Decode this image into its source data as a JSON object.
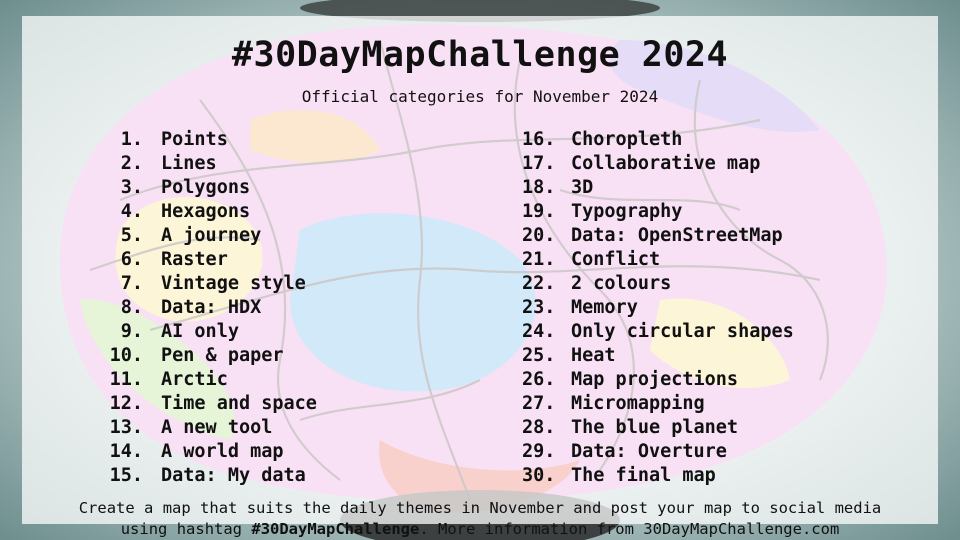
{
  "title": "#30DayMapChallenge 2024",
  "subtitle": "Official categories for November 2024",
  "days_left": [
    {
      "num": "1.",
      "label": "Points"
    },
    {
      "num": "2.",
      "label": "Lines"
    },
    {
      "num": "3.",
      "label": "Polygons"
    },
    {
      "num": "4.",
      "label": "Hexagons"
    },
    {
      "num": "5.",
      "label": "A journey"
    },
    {
      "num": "6.",
      "label": "Raster"
    },
    {
      "num": "7.",
      "label": "Vintage style"
    },
    {
      "num": "8.",
      "label": "Data: HDX"
    },
    {
      "num": "9.",
      "label": "AI only"
    },
    {
      "num": "10.",
      "label": "Pen & paper"
    },
    {
      "num": "11.",
      "label": "Arctic"
    },
    {
      "num": "12.",
      "label": "Time and space"
    },
    {
      "num": "13.",
      "label": "A new tool"
    },
    {
      "num": "14.",
      "label": "A world map"
    },
    {
      "num": "15.",
      "label": "Data: My data"
    }
  ],
  "days_right": [
    {
      "num": "16.",
      "label": "Choropleth"
    },
    {
      "num": "17.",
      "label": "Collaborative map"
    },
    {
      "num": "18.",
      "label": "3D"
    },
    {
      "num": "19.",
      "label": "Typography"
    },
    {
      "num": "20.",
      "label": "Data: OpenStreetMap"
    },
    {
      "num": "21.",
      "label": "Conflict"
    },
    {
      "num": "22.",
      "label": "2 colours"
    },
    {
      "num": "23.",
      "label": "Memory"
    },
    {
      "num": "24.",
      "label": "Only circular shapes"
    },
    {
      "num": "25.",
      "label": "Heat"
    },
    {
      "num": "26.",
      "label": "Map projections"
    },
    {
      "num": "27.",
      "label": "Micromapping"
    },
    {
      "num": "28.",
      "label": "The blue planet"
    },
    {
      "num": "29.",
      "label": "Data: Overture"
    },
    {
      "num": "30.",
      "label": "The final map"
    }
  ],
  "footer": {
    "line1": "Create a map that suits the daily themes in November and post your map to social media",
    "line2_prefix": "using hashtag ",
    "line2_hashtag": "#30DayMapChallenge",
    "line2_suffix": ". More information from 30DayMapChallenge.com"
  },
  "colors": {
    "background": "#a9bcbc",
    "panel": "#ffffff",
    "text": "#111111",
    "brain_pink": "#e98bd6",
    "brain_blue": "#4fa9e6",
    "brain_yellow": "#f3d86a",
    "brain_red": "#e24a3a",
    "brain_green": "#9fd36a",
    "brain_purple": "#9b7be0",
    "vein": "#3a2a2a"
  }
}
